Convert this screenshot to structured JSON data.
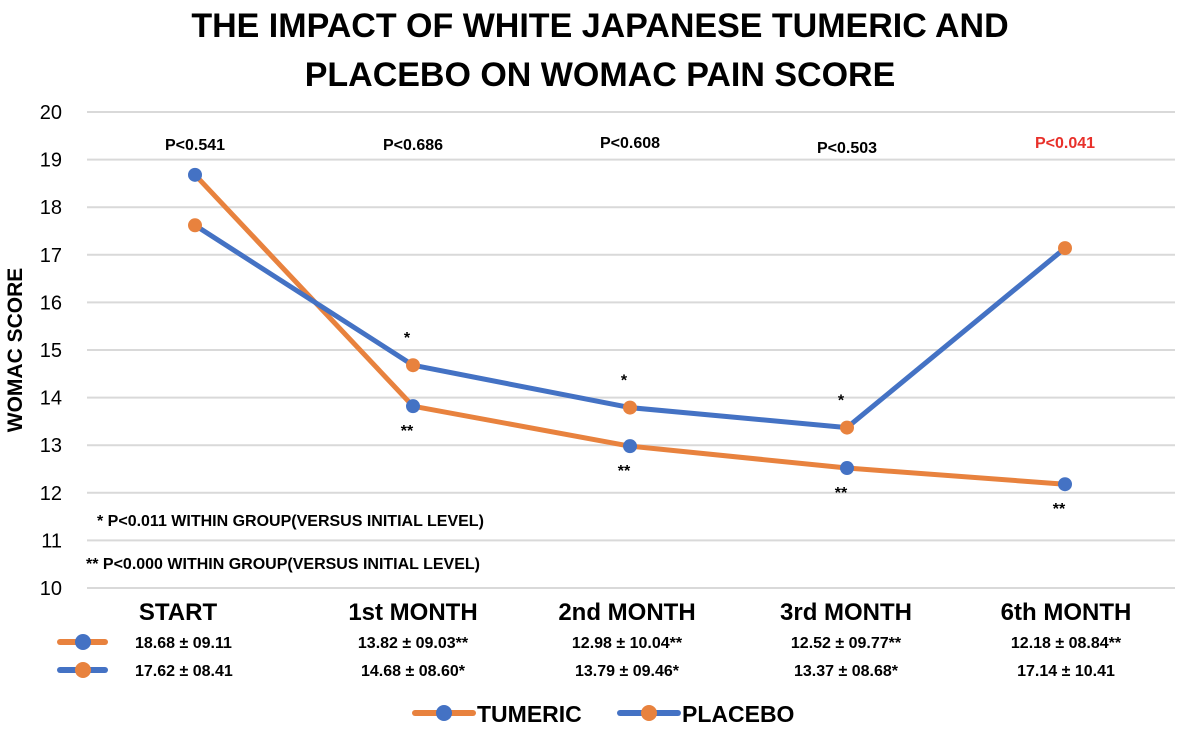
{
  "chart_data": {
    "type": "line",
    "title_lines": [
      "THE IMPACT OF WHITE JAPANESE TUMERIC AND",
      "PLACEBO ON WOMAC PAIN SCORE"
    ],
    "xlabel": "",
    "ylabel": "WOMAC SCORE",
    "ylim": [
      10,
      20
    ],
    "yticks": [
      10,
      11,
      12,
      13,
      14,
      15,
      16,
      17,
      18,
      19,
      20
    ],
    "grid": true,
    "categories": [
      "START",
      "1st MONTH",
      "2nd MONTH",
      "3rd MONTH",
      "6th MONTH"
    ],
    "series": [
      {
        "name": "TUMERIC",
        "line_color": "#E8823E",
        "marker_color": "#4472C4",
        "values": [
          18.68,
          13.82,
          12.98,
          12.52,
          12.18
        ],
        "stats": [
          "18.68 ± 09.11",
          "13.82 ± 09.03**",
          "12.98 ± 10.04**",
          "12.52 ± 09.77**",
          "12.18 ± 08.84**"
        ],
        "markers": [
          "",
          "**",
          "**",
          "**",
          "**"
        ]
      },
      {
        "name": "PLACEBO",
        "line_color": "#4472C4",
        "marker_color": "#E8823E",
        "values": [
          17.62,
          14.68,
          13.79,
          13.37,
          17.14
        ],
        "stats": [
          "17.62 ± 08.41",
          "14.68 ± 08.60*",
          "13.79 ± 09.46*",
          "13.37 ± 08.68*",
          "17.14 ± 10.41"
        ],
        "markers": [
          "",
          "*",
          "*",
          "*",
          ""
        ]
      }
    ],
    "p_values": [
      {
        "label": "P<0.541",
        "color": "#000000"
      },
      {
        "label": "P<0.686",
        "color": "#000000"
      },
      {
        "label": "P<0.608",
        "color": "#000000"
      },
      {
        "label": "P<0.503",
        "color": "#000000"
      },
      {
        "label": "P<0.041",
        "color": "#E8302A"
      }
    ],
    "annotations": [
      "* P<0.011 WITHIN GROUP(VERSUS INITIAL LEVEL)",
      "** P<0.000 WITHIN GROUP(VERSUS INITIAL LEVEL)"
    ],
    "legend": {
      "position": "bottom",
      "entries": [
        "TUMERIC",
        "PLACEBO"
      ]
    }
  }
}
